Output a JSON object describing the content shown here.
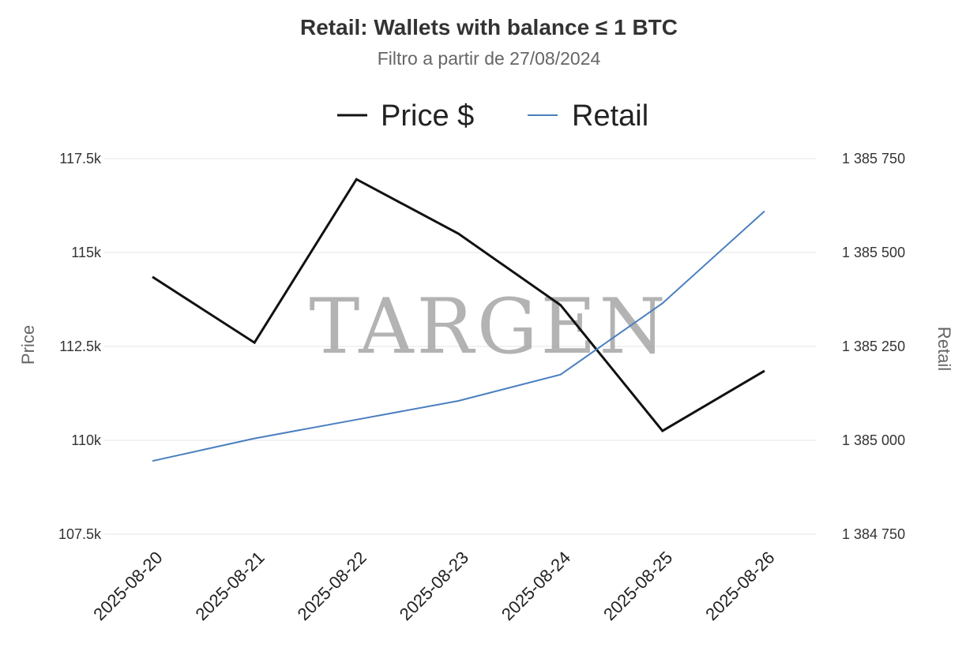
{
  "chart_data": {
    "type": "line",
    "title": "Retail: Wallets with balance ≤ 1 BTC",
    "subtitle": "Filtro a partir de 27/08/2024",
    "watermark": "TARGEN",
    "x": [
      "2025-08-20",
      "2025-08-21",
      "2025-08-22",
      "2025-08-23",
      "2025-08-24",
      "2025-08-25",
      "2025-08-26"
    ],
    "series": [
      {
        "name": "Price $",
        "axis": "left",
        "color": "#111111",
        "values": [
          114350,
          112600,
          116950,
          115500,
          113600,
          110250,
          111850
        ]
      },
      {
        "name": "Retail",
        "axis": "right",
        "color": "#4a7fbf",
        "values": [
          1384945,
          1385005,
          1385055,
          1385105,
          1385175,
          1385365,
          1385610
        ]
      }
    ],
    "y_left": {
      "label": "Price",
      "range": [
        107500,
        117500
      ],
      "ticks": [
        107500,
        110000,
        112500,
        115000,
        117500
      ],
      "tick_labels": [
        "107.5k",
        "110k",
        "112.5k",
        "115k",
        "117.5k"
      ]
    },
    "y_right": {
      "label": "Retail",
      "range": [
        1384750,
        1385750
      ],
      "ticks": [
        1384750,
        1385000,
        1385250,
        1385500,
        1385750
      ],
      "tick_labels": [
        "1 384 750",
        "1 385 000",
        "1 385 250",
        "1 385 500",
        "1 385 750"
      ]
    },
    "legend_position": "top-center",
    "grid": true
  }
}
